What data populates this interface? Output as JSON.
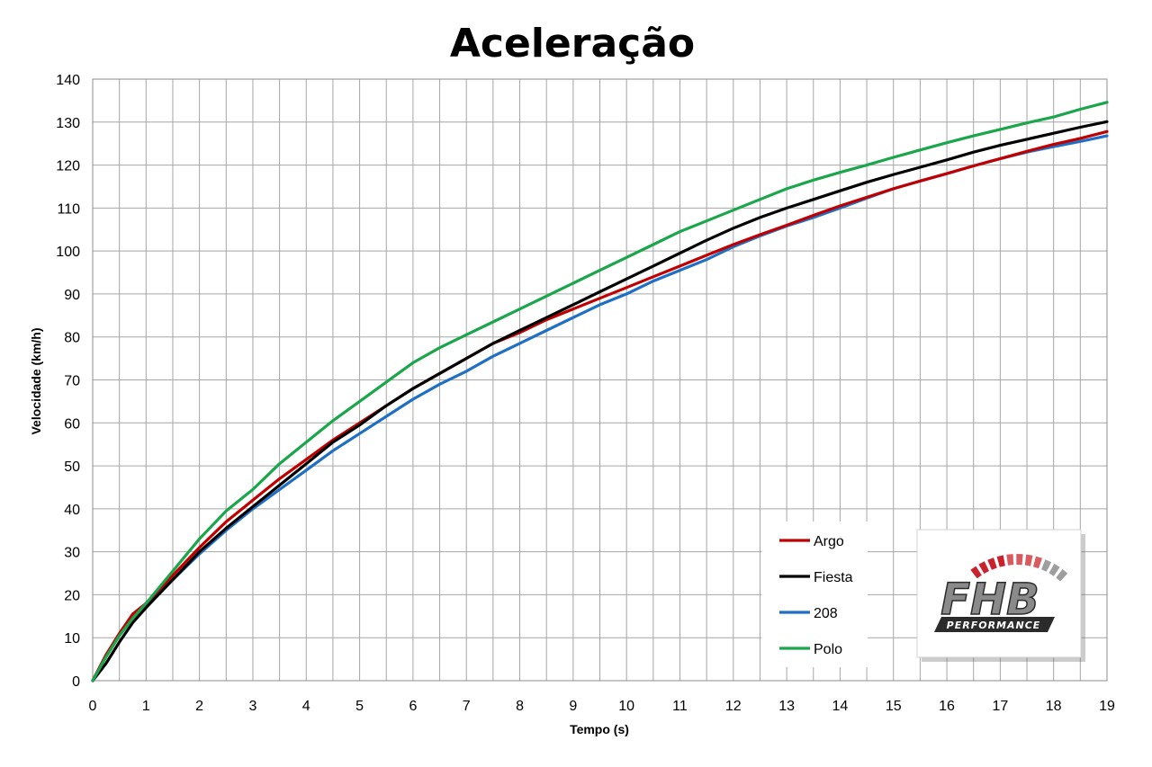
{
  "colors": {
    "argo": "#c00000",
    "fiesta": "#000000",
    "c208": "#1f6fc5",
    "polo": "#1aa64a",
    "grid": "#a6a6a6",
    "logo_red": "#c8232c",
    "logo_dark": "#2b2b2b"
  },
  "logo": {
    "brand": "FHB",
    "tagline": "PERFORMANCE",
    "icon": "fhb-performance-logo"
  },
  "chart_data": {
    "type": "line",
    "title": "Aceleração",
    "xlabel": "Tempo (s)",
    "ylabel": "Velocidade (km/h)",
    "xlim": [
      0,
      19
    ],
    "ylim": [
      0,
      140
    ],
    "x_ticks": [
      0,
      1,
      2,
      3,
      4,
      5,
      6,
      7,
      8,
      9,
      10,
      11,
      12,
      13,
      14,
      15,
      16,
      17,
      18,
      19
    ],
    "y_ticks": [
      0,
      10,
      20,
      30,
      40,
      50,
      60,
      70,
      80,
      90,
      100,
      110,
      120,
      130,
      140
    ],
    "grid": true,
    "legend_position": "bottom-right",
    "series": [
      {
        "name": "Argo",
        "color": "#c00000",
        "x": [
          0,
          0.25,
          0.5,
          0.75,
          1,
          1.5,
          2,
          2.5,
          3,
          3.5,
          4,
          4.5,
          5,
          5.5,
          6,
          6.5,
          7,
          7.5,
          8,
          8.5,
          9,
          9.5,
          10,
          10.5,
          11,
          11.5,
          12,
          12.5,
          13,
          13.5,
          14,
          14.5,
          15,
          15.5,
          16,
          16.5,
          17,
          17.5,
          18,
          18.5,
          19
        ],
        "y": [
          0,
          6,
          11,
          15.5,
          18,
          24.5,
          31,
          37,
          42,
          47,
          51.5,
          56,
          60,
          64,
          68,
          71.5,
          75,
          78.5,
          81,
          84,
          86.5,
          89,
          91.5,
          94,
          96.5,
          99,
          101.5,
          103.8,
          106,
          108.3,
          110.5,
          112.5,
          114.5,
          116.3,
          118,
          119.8,
          121.5,
          123.2,
          124.8,
          126.2,
          127.8
        ]
      },
      {
        "name": "Fiesta",
        "color": "#000000",
        "x": [
          0,
          0.25,
          0.5,
          0.75,
          1,
          1.5,
          2,
          2.5,
          3,
          3.5,
          4,
          4.5,
          5,
          5.5,
          6,
          6.5,
          7,
          7.5,
          8,
          8.5,
          9,
          9.5,
          10,
          10.5,
          11,
          11.5,
          12,
          12.5,
          13,
          13.5,
          14,
          14.5,
          15,
          15.5,
          16,
          16.5,
          17,
          17.5,
          18,
          18.5,
          19
        ],
        "y": [
          0,
          4,
          9,
          13.5,
          17,
          23.5,
          30,
          35.5,
          40.5,
          45.5,
          50.5,
          55.5,
          59.5,
          64,
          68,
          71.5,
          75,
          78.5,
          81.5,
          84.5,
          87.5,
          90.5,
          93.5,
          96.5,
          99.5,
          102.5,
          105.3,
          107.8,
          110,
          112,
          114,
          116,
          117.8,
          119.5,
          121.2,
          123,
          124.6,
          126,
          127.4,
          128.8,
          130.1
        ]
      },
      {
        "name": "208",
        "color": "#1f6fc5",
        "x": [
          0,
          0.25,
          0.5,
          0.75,
          1,
          1.5,
          2,
          2.5,
          3,
          3.5,
          4,
          4.5,
          5,
          5.5,
          6,
          6.5,
          7,
          7.5,
          8,
          8.5,
          9,
          9.5,
          10,
          10.5,
          11,
          11.5,
          12,
          12.5,
          13,
          13.5,
          14,
          14.5,
          15,
          15.5,
          16,
          16.5,
          17,
          17.5,
          18,
          18.5,
          19
        ],
        "y": [
          0,
          6,
          10.5,
          14.5,
          17.5,
          23.5,
          29.5,
          35,
          40,
          44.5,
          49,
          53.5,
          57.5,
          61.5,
          65.5,
          69,
          72,
          75.5,
          78.5,
          81.5,
          84.5,
          87.5,
          90,
          93,
          95.5,
          98,
          101,
          103.5,
          105.8,
          107.8,
          110,
          112.3,
          114.5,
          116.3,
          118,
          119.8,
          121.5,
          123,
          124.3,
          125.5,
          126.8
        ]
      },
      {
        "name": "Polo",
        "color": "#1aa64a",
        "x": [
          0,
          0.25,
          0.5,
          0.75,
          1,
          1.5,
          2,
          2.5,
          3,
          3.5,
          4,
          4.5,
          5,
          5.5,
          6,
          6.5,
          7,
          7.5,
          8,
          8.5,
          9,
          9.5,
          10,
          10.5,
          11,
          11.5,
          12,
          12.5,
          13,
          13.5,
          14,
          14.5,
          15,
          15.5,
          16,
          16.5,
          17,
          17.5,
          18,
          18.5,
          19
        ],
        "y": [
          0,
          5.5,
          10.5,
          14.5,
          18,
          25.5,
          33,
          39.5,
          44.5,
          50.5,
          55.5,
          60.5,
          65,
          69.5,
          74,
          77.5,
          80.5,
          83.5,
          86.5,
          89.5,
          92.5,
          95.5,
          98.5,
          101.5,
          104.5,
          107,
          109.5,
          112,
          114.5,
          116.5,
          118.3,
          120,
          121.8,
          123.5,
          125.2,
          126.8,
          128.3,
          129.8,
          131.2,
          133,
          134.6
        ]
      }
    ]
  }
}
